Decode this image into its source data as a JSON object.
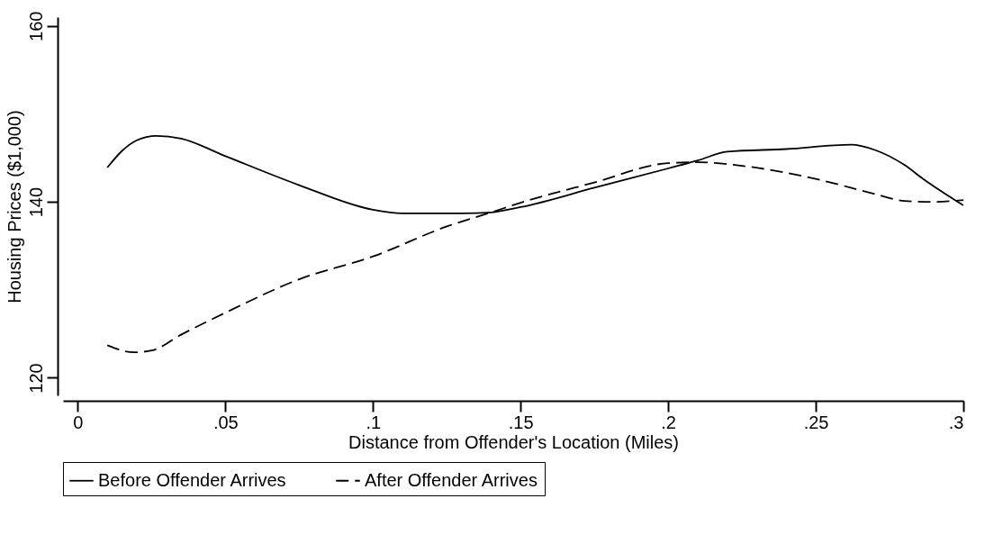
{
  "chart_data": {
    "type": "line",
    "xlabel": "Distance from Offender's Location (Miles)",
    "ylabel": "Housing Prices ($1,000)",
    "xlim": [
      -0.005,
      0.3
    ],
    "ylim": [
      118,
      161
    ],
    "xticks": [
      {
        "value": 0,
        "label": "0"
      },
      {
        "value": 0.05,
        "label": ".05"
      },
      {
        "value": 0.1,
        "label": ".1"
      },
      {
        "value": 0.15,
        "label": ".15"
      },
      {
        "value": 0.2,
        "label": ".2"
      },
      {
        "value": 0.25,
        "label": ".25"
      },
      {
        "value": 0.3,
        "label": ".3"
      }
    ],
    "yticks": [
      120,
      140,
      160
    ],
    "grid": false,
    "legend": "bottom",
    "series": [
      {
        "name": "Before Offender Arrives",
        "color": "#000000",
        "line_style": "solid",
        "x": [
          0.01,
          0.015,
          0.02,
          0.0266,
          0.035,
          0.05,
          0.075,
          0.1,
          0.11,
          0.13,
          0.14,
          0.15,
          0.175,
          0.2,
          0.21,
          0.22,
          0.24,
          0.262,
          0.27,
          0.28,
          0.2864,
          0.3
        ],
        "values": [
          143.9,
          145.8,
          147,
          147.5,
          147.2,
          145.2,
          141.9,
          139.1,
          138.7,
          138.7,
          138.8,
          139.4,
          141.6,
          143.8,
          144.7,
          145.7,
          146,
          146.5,
          145.9,
          144.2,
          142.6,
          139.6
        ]
      },
      {
        "name": "After Offender Arrives",
        "color": "#000000",
        "line_style": "dashed",
        "x": [
          0.01,
          0.019,
          0.025,
          0.035,
          0.05,
          0.075,
          0.1,
          0.125,
          0.14,
          0.15,
          0.175,
          0.2,
          0.21,
          0.225,
          0.25,
          0.27,
          0.28,
          0.29,
          0.3
        ],
        "values": [
          123.7,
          122.9,
          123.1,
          124.9,
          127.4,
          131.2,
          133.8,
          137.2,
          138.8,
          139.9,
          142.2,
          144.4,
          144.5,
          144.1,
          142.6,
          140.9,
          140.1,
          140,
          140.2
        ]
      }
    ]
  }
}
